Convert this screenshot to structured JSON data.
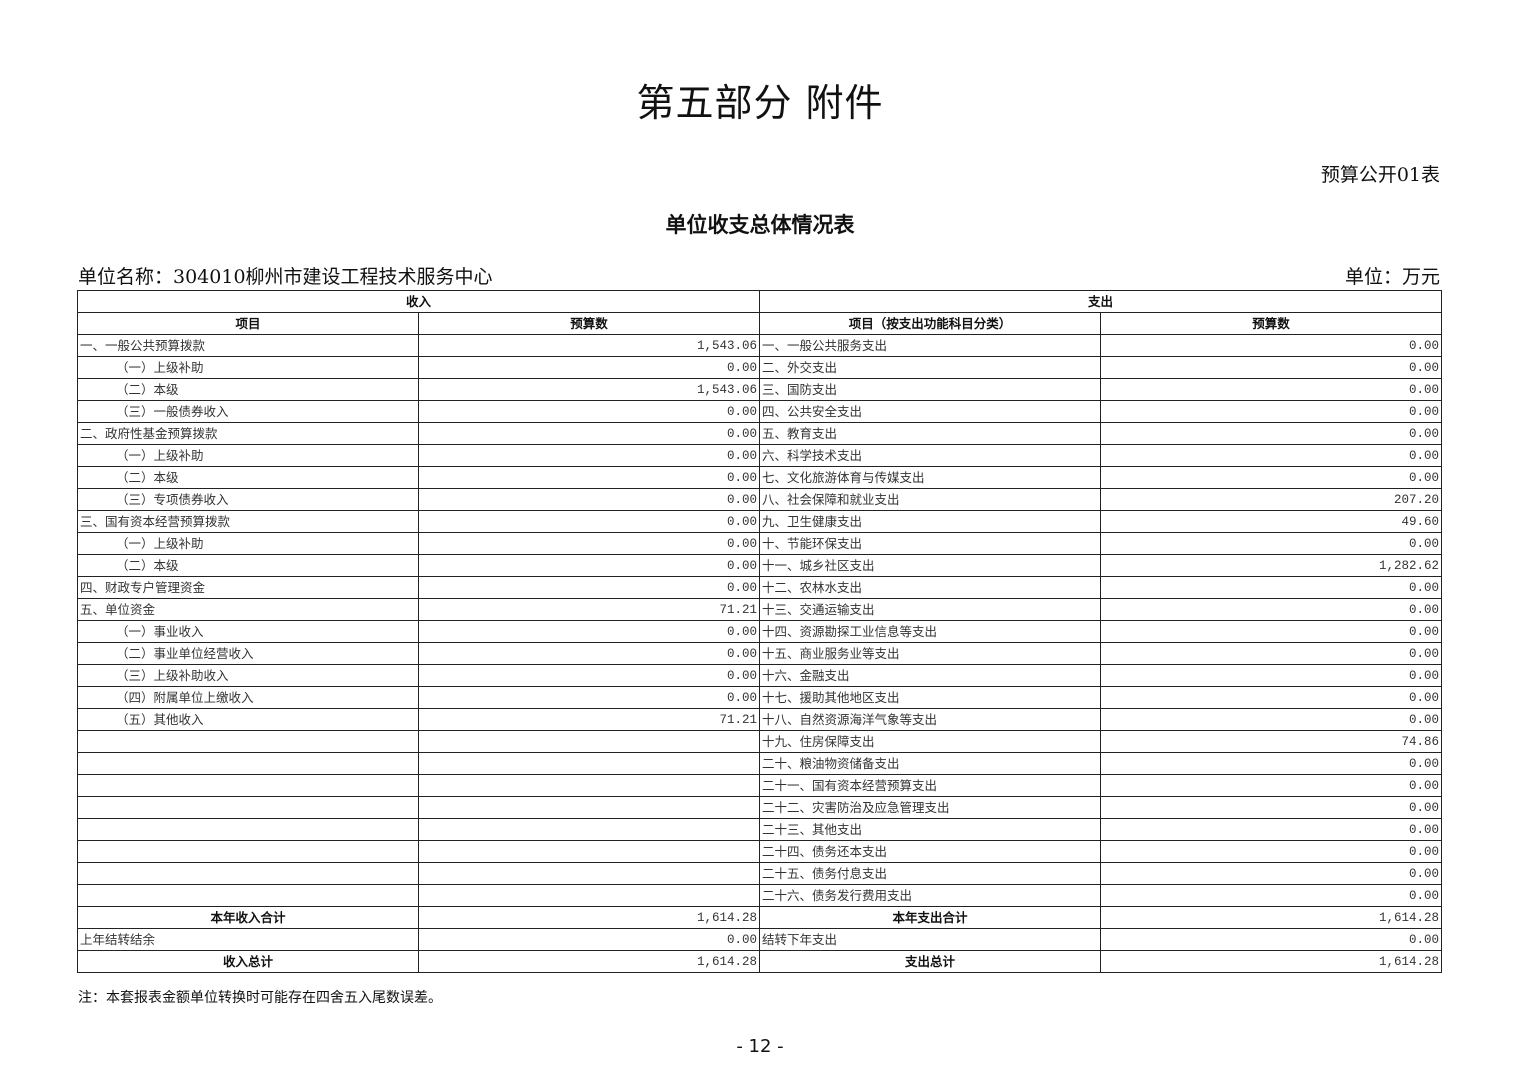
{
  "main_title": "第五部分  附件",
  "form_code": "预算公开01表",
  "table_title": "单位收支总体情况表",
  "unit_name": "单位名称：304010柳州市建设工程技术服务中心",
  "unit": "单位：万元",
  "headers": {
    "income": "收入",
    "expense": "支出",
    "income_item": "项目",
    "income_amount": "预算数",
    "expense_item": "项目（按支出功能科目分类）",
    "expense_amount": "预算数"
  },
  "rows": [
    {
      "inc_item": "一、一般公共预算拨款",
      "inc_indent": false,
      "inc_amt": "1,543.06",
      "exp_item": "一、一般公共服务支出",
      "exp_amt": "0.00"
    },
    {
      "inc_item": "（一）上级补助",
      "inc_indent": true,
      "inc_amt": "0.00",
      "exp_item": "二、外交支出",
      "exp_amt": "0.00"
    },
    {
      "inc_item": "（二）本级",
      "inc_indent": true,
      "inc_amt": "1,543.06",
      "exp_item": "三、国防支出",
      "exp_amt": "0.00"
    },
    {
      "inc_item": "（三）一般债券收入",
      "inc_indent": true,
      "inc_amt": "0.00",
      "exp_item": "四、公共安全支出",
      "exp_amt": "0.00"
    },
    {
      "inc_item": "二、政府性基金预算拨款",
      "inc_indent": false,
      "inc_amt": "0.00",
      "exp_item": "五、教育支出",
      "exp_amt": "0.00"
    },
    {
      "inc_item": "（一）上级补助",
      "inc_indent": true,
      "inc_amt": "0.00",
      "exp_item": "六、科学技术支出",
      "exp_amt": "0.00"
    },
    {
      "inc_item": "（二）本级",
      "inc_indent": true,
      "inc_amt": "0.00",
      "exp_item": "七、文化旅游体育与传媒支出",
      "exp_amt": "0.00"
    },
    {
      "inc_item": "（三）专项债券收入",
      "inc_indent": true,
      "inc_amt": "0.00",
      "exp_item": "八、社会保障和就业支出",
      "exp_amt": "207.20"
    },
    {
      "inc_item": "三、国有资本经营预算拨款",
      "inc_indent": false,
      "inc_amt": "0.00",
      "exp_item": "九、卫生健康支出",
      "exp_amt": "49.60"
    },
    {
      "inc_item": "（一）上级补助",
      "inc_indent": true,
      "inc_amt": "0.00",
      "exp_item": "十、节能环保支出",
      "exp_amt": "0.00"
    },
    {
      "inc_item": "（二）本级",
      "inc_indent": true,
      "inc_amt": "0.00",
      "exp_item": "十一、城乡社区支出",
      "exp_amt": "1,282.62"
    },
    {
      "inc_item": "四、财政专户管理资金",
      "inc_indent": false,
      "inc_amt": "0.00",
      "exp_item": "十二、农林水支出",
      "exp_amt": "0.00"
    },
    {
      "inc_item": "五、单位资金",
      "inc_indent": false,
      "inc_amt": "71.21",
      "exp_item": "十三、交通运输支出",
      "exp_amt": "0.00"
    },
    {
      "inc_item": "（一）事业收入",
      "inc_indent": true,
      "inc_amt": "0.00",
      "exp_item": "十四、资源勘探工业信息等支出",
      "exp_amt": "0.00"
    },
    {
      "inc_item": "（二）事业单位经营收入",
      "inc_indent": true,
      "inc_amt": "0.00",
      "exp_item": "十五、商业服务业等支出",
      "exp_amt": "0.00"
    },
    {
      "inc_item": "（三）上级补助收入",
      "inc_indent": true,
      "inc_amt": "0.00",
      "exp_item": "十六、金融支出",
      "exp_amt": "0.00"
    },
    {
      "inc_item": "（四）附属单位上缴收入",
      "inc_indent": true,
      "inc_amt": "0.00",
      "exp_item": "十七、援助其他地区支出",
      "exp_amt": "0.00"
    },
    {
      "inc_item": "（五）其他收入",
      "inc_indent": true,
      "inc_amt": "71.21",
      "exp_item": "十八、自然资源海洋气象等支出",
      "exp_amt": "0.00"
    },
    {
      "inc_item": "",
      "inc_indent": false,
      "inc_amt": "",
      "exp_item": "十九、住房保障支出",
      "exp_amt": "74.86"
    },
    {
      "inc_item": "",
      "inc_indent": false,
      "inc_amt": "",
      "exp_item": "二十、粮油物资储备支出",
      "exp_amt": "0.00"
    },
    {
      "inc_item": "",
      "inc_indent": false,
      "inc_amt": "",
      "exp_item": "二十一、国有资本经营预算支出",
      "exp_amt": "0.00"
    },
    {
      "inc_item": "",
      "inc_indent": false,
      "inc_amt": "",
      "exp_item": "二十二、灾害防治及应急管理支出",
      "exp_amt": "0.00"
    },
    {
      "inc_item": "",
      "inc_indent": false,
      "inc_amt": "",
      "exp_item": "二十三、其他支出",
      "exp_amt": "0.00"
    },
    {
      "inc_item": "",
      "inc_indent": false,
      "inc_amt": "",
      "exp_item": "二十四、债务还本支出",
      "exp_amt": "0.00"
    },
    {
      "inc_item": "",
      "inc_indent": false,
      "inc_amt": "",
      "exp_item": "二十五、债务付息支出",
      "exp_amt": "0.00"
    },
    {
      "inc_item": "",
      "inc_indent": false,
      "inc_amt": "",
      "exp_item": "二十六、债务发行费用支出",
      "exp_amt": "0.00"
    }
  ],
  "totals": [
    {
      "inc_item": "本年收入合计",
      "inc_bold": true,
      "inc_amt": "1,614.28",
      "exp_item": "本年支出合计",
      "exp_bold": true,
      "exp_amt": "1,614.28"
    },
    {
      "inc_item": "上年结转结余",
      "inc_bold": false,
      "inc_amt": "0.00",
      "exp_item": "结转下年支出",
      "exp_bold": false,
      "exp_amt": "0.00"
    },
    {
      "inc_item": "收入总计",
      "inc_bold": true,
      "inc_amt": "1,614.28",
      "exp_item": "支出总计",
      "exp_bold": true,
      "exp_amt": "1,614.28"
    }
  ],
  "note": "注：本套报表金额单位转换时可能存在四舍五入尾数误差。",
  "page_number": "- 12 -"
}
